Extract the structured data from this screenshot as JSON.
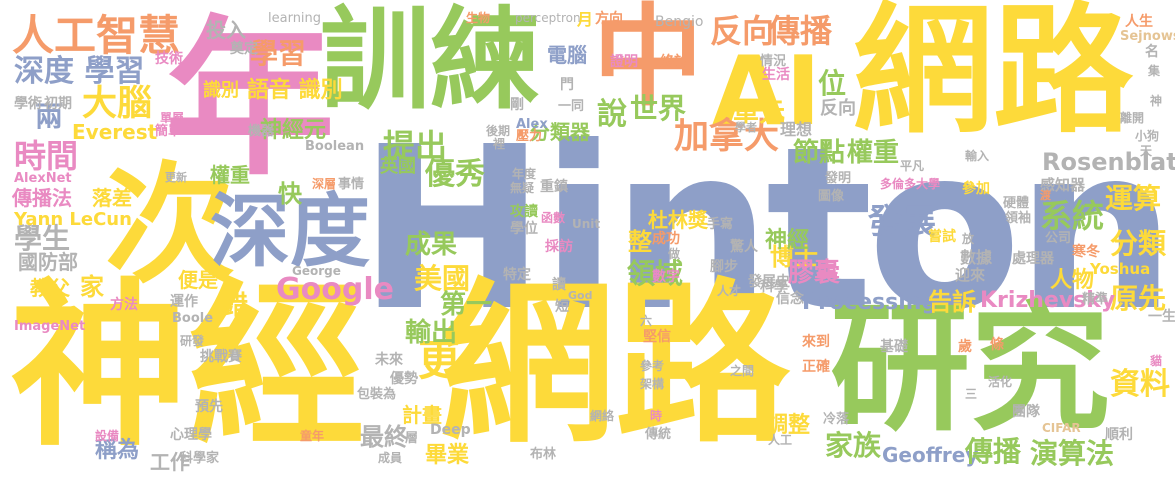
{
  "colors": {
    "blue": "#8E9FC8",
    "green": "#97C95C",
    "yellow": "#FDDA3A",
    "orange": "#F59B6A",
    "pink": "#E98AC2",
    "grey": "#B3B3B3",
    "tan": "#E5C494"
  },
  "words": [
    {
      "text": "Hinton",
      "color": "blue"
    },
    {
      "text": "神經",
      "color": "yellow"
    },
    {
      "text": "網路",
      "color": "yellow"
    },
    {
      "text": "網路",
      "color": "yellow"
    },
    {
      "text": "研究",
      "color": "green"
    },
    {
      "text": "訓練",
      "color": "green"
    },
    {
      "text": "年",
      "color": "pink"
    },
    {
      "text": "次",
      "color": "yellow"
    },
    {
      "text": "中",
      "color": "orange"
    },
    {
      "text": "AI",
      "color": "yellow"
    },
    {
      "text": "深度",
      "color": "blue"
    },
    {
      "text": "人工智慧",
      "color": "orange"
    },
    {
      "text": "深度 學習",
      "color": "blue"
    },
    {
      "text": "大腦",
      "color": "yellow"
    },
    {
      "text": "學習",
      "color": "orange"
    },
    {
      "text": "反向",
      "color": "orange"
    },
    {
      "text": "傳播",
      "color": "orange"
    },
    {
      "text": "時間",
      "color": "pink"
    },
    {
      "text": "兩",
      "color": "blue"
    },
    {
      "text": "Everest",
      "color": "yellow"
    },
    {
      "text": "神經元",
      "color": "green"
    },
    {
      "text": "提出",
      "color": "green"
    },
    {
      "text": "加拿大",
      "color": "orange"
    },
    {
      "text": "單元",
      "color": "yellow"
    },
    {
      "text": "世界",
      "color": "green"
    },
    {
      "text": "說",
      "color": "green"
    },
    {
      "text": "位",
      "color": "green"
    },
    {
      "text": "節點",
      "color": "green"
    },
    {
      "text": "權重",
      "color": "green"
    },
    {
      "text": "Rosenblatt",
      "color": "grey"
    },
    {
      "text": "運算",
      "color": "yellow"
    },
    {
      "text": "分類",
      "color": "yellow"
    },
    {
      "text": "系統",
      "color": "green"
    },
    {
      "text": "發展",
      "color": "blue"
    },
    {
      "text": "優秀",
      "color": "green"
    },
    {
      "text": "成果",
      "color": "green"
    },
    {
      "text": "學生",
      "color": "grey"
    },
    {
      "text": "美國",
      "color": "yellow"
    },
    {
      "text": "領域",
      "color": "green"
    },
    {
      "text": "Google",
      "color": "pink"
    },
    {
      "text": "家",
      "color": "yellow"
    },
    {
      "text": "第一",
      "color": "green"
    },
    {
      "text": "更",
      "color": "yellow"
    },
    {
      "text": "錯",
      "color": "yellow"
    },
    {
      "text": "輸出",
      "color": "green"
    },
    {
      "text": "原先",
      "color": "yellow"
    },
    {
      "text": "資料",
      "color": "yellow"
    },
    {
      "text": "人物",
      "color": "yellow"
    },
    {
      "text": "家族",
      "color": "green"
    },
    {
      "text": "Geoffrey",
      "color": "blue"
    },
    {
      "text": "傳播",
      "color": "green"
    },
    {
      "text": "演算法",
      "color": "green"
    },
    {
      "text": "最終",
      "color": "grey"
    },
    {
      "text": "畢業",
      "color": "yellow"
    },
    {
      "text": "計畫",
      "color": "yellow"
    },
    {
      "text": "工作",
      "color": "grey"
    },
    {
      "text": "稱為",
      "color": "blue"
    },
    {
      "text": "調整",
      "color": "yellow"
    },
    {
      "text": "博士",
      "color": "yellow"
    },
    {
      "text": "神經",
      "color": "green"
    },
    {
      "text": "膠囊",
      "color": "pink"
    },
    {
      "text": "Processing",
      "color": "blue"
    },
    {
      "text": "告訴",
      "color": "yellow"
    },
    {
      "text": "Krizhevsky",
      "color": "pink"
    },
    {
      "text": "杜林獎",
      "color": "yellow"
    },
    {
      "text": "整",
      "color": "yellow"
    },
    {
      "text": "快",
      "color": "green"
    },
    {
      "text": "英國",
      "color": "green"
    },
    {
      "text": "權重",
      "color": "green"
    },
    {
      "text": "傳播法",
      "color": "pink"
    },
    {
      "text": "落差",
      "color": "yellow"
    },
    {
      "text": "Yann LeCun",
      "color": "yellow"
    },
    {
      "text": "國防部",
      "color": "grey"
    },
    {
      "text": "教父",
      "color": "yellow"
    },
    {
      "text": "便是",
      "color": "yellow"
    },
    {
      "text": "分類器",
      "color": "green"
    },
    {
      "text": "電腦",
      "color": "blue"
    },
    {
      "text": "投入",
      "color": "grey"
    },
    {
      "text": "識別",
      "color": "yellow"
    },
    {
      "text": "語音 識別",
      "color": "yellow"
    },
    {
      "text": "學術",
      "color": "grey"
    },
    {
      "text": "初期",
      "color": "grey"
    },
    {
      "text": "奠定",
      "color": "grey"
    },
    {
      "text": "技術",
      "color": "pink"
    },
    {
      "text": "learning",
      "color": "grey"
    },
    {
      "text": "perceptron",
      "color": "grey"
    },
    {
      "text": "Bengio",
      "color": "grey"
    },
    {
      "text": "生物",
      "color": "orange"
    },
    {
      "text": "月",
      "color": "yellow"
    },
    {
      "text": "方向",
      "color": "orange"
    },
    {
      "text": "證明",
      "color": "pink"
    },
    {
      "text": "終於",
      "color": "orange"
    },
    {
      "text": "反向",
      "color": "grey"
    },
    {
      "text": "理想",
      "color": "grey"
    },
    {
      "text": "情況",
      "color": "grey"
    },
    {
      "text": "生活",
      "color": "pink"
    },
    {
      "text": "Sejnowski",
      "color": "tan"
    },
    {
      "text": "人生",
      "color": "orange"
    },
    {
      "text": "名",
      "color": "grey"
    },
    {
      "text": "Alex",
      "color": "blue"
    },
    {
      "text": "壓力",
      "color": "orange"
    },
    {
      "text": "後期",
      "color": "grey"
    },
    {
      "text": "門",
      "color": "grey"
    },
    {
      "text": "剛",
      "color": "grey"
    },
    {
      "text": "一同",
      "color": "grey"
    },
    {
      "text": "Boolean",
      "color": "grey"
    },
    {
      "text": "機器",
      "color": "grey"
    },
    {
      "text": "解決",
      "color": "pink"
    },
    {
      "text": "簡單",
      "color": "pink"
    },
    {
      "text": "單層",
      "color": "pink"
    },
    {
      "text": "AlexNet",
      "color": "pink"
    },
    {
      "text": "更新",
      "color": "grey"
    },
    {
      "text": "深層",
      "color": "orange"
    },
    {
      "text": "事情",
      "color": "grey"
    },
    {
      "text": "年度",
      "color": "grey"
    },
    {
      "text": "無疑",
      "color": "grey"
    },
    {
      "text": "重鎮",
      "color": "grey"
    },
    {
      "text": "攻讀",
      "color": "green"
    },
    {
      "text": "學位",
      "color": "grey"
    },
    {
      "text": "函數",
      "color": "pink"
    },
    {
      "text": "Unit",
      "color": "grey"
    },
    {
      "text": "採訪",
      "color": "pink"
    },
    {
      "text": "成功",
      "color": "orange"
    },
    {
      "text": "做",
      "color": "grey"
    },
    {
      "text": "手寫",
      "color": "grey"
    },
    {
      "text": "驚人",
      "color": "grey"
    },
    {
      "text": "圖像",
      "color": "grey"
    },
    {
      "text": "發明",
      "color": "grey"
    },
    {
      "text": "平凡",
      "color": "grey"
    },
    {
      "text": "多倫多大學",
      "color": "pink"
    },
    {
      "text": "參加",
      "color": "yellow"
    },
    {
      "text": "感知器",
      "color": "grey"
    },
    {
      "text": "硬體",
      "color": "grey"
    },
    {
      "text": "領袖",
      "color": "grey"
    },
    {
      "text": "嘗試",
      "color": "yellow"
    },
    {
      "text": "公司",
      "color": "grey"
    },
    {
      "text": "寒冬",
      "color": "orange"
    },
    {
      "text": "數據",
      "color": "grey"
    },
    {
      "text": "處理器",
      "color": "grey"
    },
    {
      "text": "迎來",
      "color": "grey"
    },
    {
      "text": "Yoshua",
      "color": "yellow"
    },
    {
      "text": "發展史",
      "color": "grey"
    },
    {
      "text": "腳步",
      "color": "grey"
    },
    {
      "text": "數字",
      "color": "pink"
    },
    {
      "text": "George",
      "color": "grey"
    },
    {
      "text": "特定",
      "color": "grey"
    },
    {
      "text": "讀",
      "color": "grey"
    },
    {
      "text": "短",
      "color": "grey"
    },
    {
      "text": "God",
      "color": "grey"
    },
    {
      "text": "人才",
      "color": "grey"
    },
    {
      "text": "科學",
      "color": "grey"
    },
    {
      "text": "信念",
      "color": "grey"
    },
    {
      "text": "精準",
      "color": "grey"
    },
    {
      "text": "一生",
      "color": "grey"
    },
    {
      "text": "方法",
      "color": "pink"
    },
    {
      "text": "運作",
      "color": "grey"
    },
    {
      "text": "Boole",
      "color": "grey"
    },
    {
      "text": "ImageNet",
      "color": "pink"
    },
    {
      "text": "挑戰賽",
      "color": "grey"
    },
    {
      "text": "研發",
      "color": "grey"
    },
    {
      "text": "優勢",
      "color": "grey"
    },
    {
      "text": "未來",
      "color": "grey"
    },
    {
      "text": "包裝為",
      "color": "grey"
    },
    {
      "text": "預先",
      "color": "grey"
    },
    {
      "text": "心理學",
      "color": "grey"
    },
    {
      "text": "設備",
      "color": "pink"
    },
    {
      "text": "童年",
      "color": "orange"
    },
    {
      "text": "Deep",
      "color": "grey"
    },
    {
      "text": "層",
      "color": "grey"
    },
    {
      "text": "科學家",
      "color": "grey"
    },
    {
      "text": "成員",
      "color": "grey"
    },
    {
      "text": "布林",
      "color": "grey"
    },
    {
      "text": "網絡",
      "color": "grey"
    },
    {
      "text": "時",
      "color": "pink"
    },
    {
      "text": "傳統",
      "color": "grey"
    },
    {
      "text": "參考",
      "color": "grey"
    },
    {
      "text": "架構",
      "color": "grey"
    },
    {
      "text": "堅信",
      "color": "orange"
    },
    {
      "text": "六",
      "color": "grey"
    },
    {
      "text": "之間",
      "color": "grey"
    },
    {
      "text": "正確",
      "color": "orange"
    },
    {
      "text": "來到",
      "color": "orange"
    },
    {
      "text": "基礎",
      "color": "grey"
    },
    {
      "text": "歲",
      "color": "orange"
    },
    {
      "text": "條",
      "color": "orange"
    },
    {
      "text": "活化",
      "color": "grey"
    },
    {
      "text": "冷落",
      "color": "grey"
    },
    {
      "text": "人工",
      "color": "grey"
    },
    {
      "text": "團隊",
      "color": "grey"
    },
    {
      "text": "CIFAR",
      "color": "tan"
    },
    {
      "text": "順利",
      "color": "grey"
    },
    {
      "text": "三",
      "color": "grey"
    },
    {
      "text": "放",
      "color": "grey"
    },
    {
      "text": "渡",
      "color": "orange"
    },
    {
      "text": "離開",
      "color": "grey"
    },
    {
      "text": "小狗",
      "color": "grey"
    },
    {
      "text": "天",
      "color": "grey"
    },
    {
      "text": "集",
      "color": "grey"
    },
    {
      "text": "神",
      "color": "grey"
    },
    {
      "text": "裡",
      "color": "grey"
    },
    {
      "text": "輸入",
      "color": "grey"
    },
    {
      "text": "學者",
      "color": "grey"
    },
    {
      "text": "貓",
      "color": "pink"
    }
  ]
}
